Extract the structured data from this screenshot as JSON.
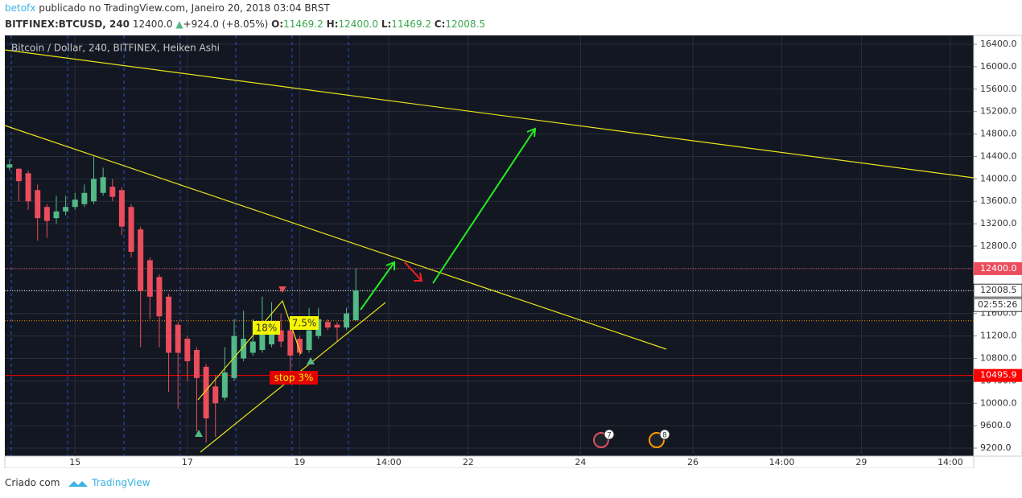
{
  "header": {
    "author": "betofx",
    "published": "publicado no TradingView.com, Janeiro 20, 2018 03:04 BRST",
    "symbol": "BITFINEX:BTCUSD, 240",
    "last": "12400.0",
    "change": "+924.0 (+8.05%)",
    "o_label": "O:",
    "o": "11469.2",
    "h_label": "H:",
    "h": "12400.0",
    "l_label": "L:",
    "l": "11469.2",
    "c_label": "C:",
    "c": "12008.5"
  },
  "chart_data": {
    "type": "candlestick",
    "title": "Bitcoin / Dollar, 240, BITFINEX, Heiken Ashi",
    "x": [
      0,
      1,
      2,
      3,
      4,
      5,
      6,
      7,
      8,
      9,
      10,
      11,
      12,
      13,
      14,
      15,
      16,
      17,
      18,
      19,
      20,
      21,
      22,
      23,
      24,
      25,
      26,
      27,
      28,
      29,
      30,
      31,
      32,
      33,
      34,
      35,
      36,
      37
    ],
    "open": [
      14200,
      14180,
      14100,
      13800,
      13500,
      13300,
      13420,
      13500,
      13550,
      13600,
      13750,
      13860,
      13800,
      13500,
      13100,
      12550,
      12250,
      11900,
      11400,
      11150,
      10950,
      10650,
      10300,
      10100,
      10450,
      10800,
      10900,
      10950,
      11050,
      11300,
      11300,
      11150,
      10950,
      11200,
      11450,
      11400,
      11350,
      11480
    ],
    "high": [
      14350,
      14200,
      14150,
      13900,
      13550,
      13700,
      13700,
      13750,
      13900,
      14400,
      14200,
      14000,
      13850,
      13550,
      13150,
      12600,
      12300,
      11950,
      11450,
      11200,
      11000,
      10700,
      10500,
      11000,
      11500,
      11650,
      11500,
      11900,
      11800,
      11600,
      11350,
      11200,
      11700,
      11700,
      11500,
      11450,
      11700,
      12400
    ],
    "low": [
      14150,
      13600,
      13450,
      12900,
      12950,
      13200,
      13350,
      13450,
      13500,
      13550,
      13700,
      13600,
      13000,
      12600,
      11000,
      11500,
      11000,
      10200,
      9900,
      10400,
      9500,
      9300,
      9400,
      10050,
      10400,
      10750,
      10850,
      10900,
      11000,
      11000,
      10550,
      10850,
      10900,
      11150,
      11300,
      11100,
      11300,
      11480
    ],
    "close": [
      14260,
      13960,
      13600,
      13300,
      13250,
      13420,
      13500,
      13630,
      13750,
      14000,
      14030,
      13680,
      13150,
      12700,
      12000,
      11900,
      11550,
      10900,
      10900,
      10750,
      10450,
      9730,
      10000,
      10550,
      11200,
      11150,
      11100,
      11300,
      11450,
      11100,
      10850,
      10900,
      11300,
      11500,
      11350,
      11350,
      11600,
      12010
    ],
    "up_color": "#53b987",
    "down_color": "#eb4d5c",
    "xlim": [
      -0.5,
      103
    ],
    "xticks": [
      {
        "value": 7,
        "label": "15"
      },
      {
        "value": 19,
        "label": "17"
      },
      {
        "value": 31,
        "label": "19"
      },
      {
        "value": 40.5,
        "label": "14:00"
      },
      {
        "value": 49,
        "label": "22"
      },
      {
        "value": 61,
        "label": "24"
      },
      {
        "value": 73,
        "label": "26"
      },
      {
        "value": 82.5,
        "label": "14:00"
      },
      {
        "value": 91,
        "label": "29"
      },
      {
        "value": 100.5,
        "label": "14:00"
      }
    ],
    "ylim": [
      9057,
      16558
    ],
    "yticks": [
      {
        "value": 9200,
        "label": "9200.0"
      },
      {
        "value": 9600,
        "label": "9600.0"
      },
      {
        "value": 10000,
        "label": "10000.0"
      },
      {
        "value": 10400,
        "label": "10400.0"
      },
      {
        "value": 10800,
        "label": "10800.0"
      },
      {
        "value": 11200,
        "label": "11200.0"
      },
      {
        "value": 11600,
        "label": "11600.0"
      },
      {
        "value": 12000,
        "label": "12000.0"
      },
      {
        "value": 12400,
        "label": "12400.0"
      },
      {
        "value": 12800,
        "label": "12800.0"
      },
      {
        "value": 13200,
        "label": "13200.0"
      },
      {
        "value": 13600,
        "label": "13600.0"
      },
      {
        "value": 14000,
        "label": "14000.0"
      },
      {
        "value": 14400,
        "label": "14400.0"
      },
      {
        "value": 14800,
        "label": "14800.0"
      },
      {
        "value": 15200,
        "label": "15200.0"
      },
      {
        "value": 15600,
        "label": "15600.0"
      },
      {
        "value": 16000,
        "label": "16000.0"
      },
      {
        "value": 16400,
        "label": "16400.0"
      }
    ],
    "price_lines": [
      {
        "value": 12400,
        "label": "12400.0",
        "color": "#eb4d5c"
      },
      {
        "value": 12008.5,
        "label": "12008.5",
        "color": "#ffffff"
      },
      {
        "value": 11469.2,
        "color": "#ff9800"
      },
      {
        "value": 10495.9,
        "label": "10495.9",
        "color": "#ff0000"
      }
    ],
    "countdown": "02:55:26",
    "annotations": [
      "18%",
      "7.5%",
      "stop 3%"
    ],
    "events": [
      "7",
      "8"
    ]
  },
  "footer": {
    "created": "Criado com",
    "brand": "TradingView"
  }
}
